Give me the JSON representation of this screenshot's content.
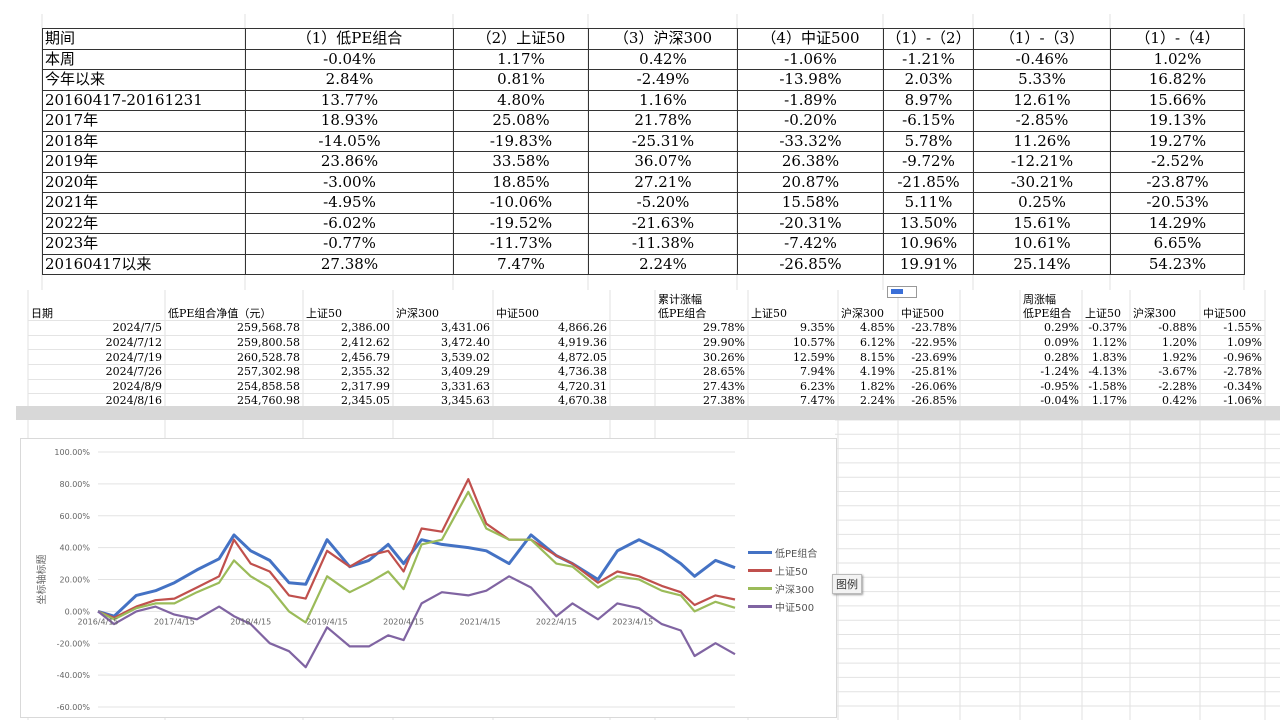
{
  "summary_table": {
    "headers": [
      "期间",
      "（1）低PE组合",
      "（2）上证50",
      "（3）沪深300",
      "（4）中证500",
      "（1）-（2）",
      "（1）-（3）",
      "（1）-（4）"
    ],
    "rows": [
      [
        "本周",
        "-0.04%",
        "1.17%",
        "0.42%",
        "-1.06%",
        "-1.21%",
        "-0.46%",
        "1.02%"
      ],
      [
        "今年以来",
        "2.84%",
        "0.81%",
        "-2.49%",
        "-13.98%",
        "2.03%",
        "5.33%",
        "16.82%"
      ],
      [
        "20160417-20161231",
        "13.77%",
        "4.80%",
        "1.16%",
        "-1.89%",
        "8.97%",
        "12.61%",
        "15.66%"
      ],
      [
        "2017年",
        "18.93%",
        "25.08%",
        "21.78%",
        "-0.20%",
        "-6.15%",
        "-2.85%",
        "19.13%"
      ],
      [
        "2018年",
        "-14.05%",
        "-19.83%",
        "-25.31%",
        "-33.32%",
        "5.78%",
        "11.26%",
        "19.27%"
      ],
      [
        "2019年",
        "23.86%",
        "33.58%",
        "36.07%",
        "26.38%",
        "-9.72%",
        "-12.21%",
        "-2.52%"
      ],
      [
        "2020年",
        "-3.00%",
        "18.85%",
        "27.21%",
        "20.87%",
        "-21.85%",
        "-30.21%",
        "-23.87%"
      ],
      [
        "2021年",
        "-4.95%",
        "-10.06%",
        "-5.20%",
        "15.58%",
        "5.11%",
        "0.25%",
        "-20.53%"
      ],
      [
        "2022年",
        "-6.02%",
        "-19.52%",
        "-21.63%",
        "-20.31%",
        "13.50%",
        "15.61%",
        "14.29%"
      ],
      [
        "2023年",
        "-0.77%",
        "-11.73%",
        "-11.38%",
        "-7.42%",
        "10.96%",
        "10.61%",
        "6.65%"
      ],
      [
        "20160417以来",
        "27.38%",
        "7.47%",
        "2.24%",
        "-26.85%",
        "19.91%",
        "25.14%",
        "54.23%"
      ]
    ]
  },
  "weekly_table": {
    "group_cumulative": "累计涨幅",
    "group_weekly": "周涨幅",
    "headers": [
      "日期",
      "低PE组合净值（元）",
      "上证50",
      "沪深300",
      "中证500",
      "低PE组合",
      "上证50",
      "沪深300",
      "中证500",
      "低PE组合",
      "上证50",
      "沪深300",
      "中证500"
    ],
    "rows": [
      [
        "2024/7/5",
        "259,568.78",
        "2,386.00",
        "3,431.06",
        "4,866.26",
        "29.78%",
        "9.35%",
        "4.85%",
        "-23.78%",
        "0.29%",
        "-0.37%",
        "-0.88%",
        "-1.55%"
      ],
      [
        "2024/7/12",
        "259,800.58",
        "2,412.62",
        "3,472.40",
        "4,919.36",
        "29.90%",
        "10.57%",
        "6.12%",
        "-22.95%",
        "0.09%",
        "1.12%",
        "1.20%",
        "1.09%"
      ],
      [
        "2024/7/19",
        "260,528.78",
        "2,456.79",
        "3,539.02",
        "4,872.05",
        "30.26%",
        "12.59%",
        "8.15%",
        "-23.69%",
        "0.28%",
        "1.83%",
        "1.92%",
        "-0.96%"
      ],
      [
        "2024/7/26",
        "257,302.98",
        "2,355.32",
        "3,409.29",
        "4,736.38",
        "28.65%",
        "7.94%",
        "4.19%",
        "-25.81%",
        "-1.24%",
        "-4.13%",
        "-3.67%",
        "-2.78%"
      ],
      [
        "2024/8/9",
        "254,858.58",
        "2,317.99",
        "3,331.63",
        "4,720.31",
        "27.43%",
        "6.23%",
        "1.82%",
        "-26.06%",
        "-0.95%",
        "-1.58%",
        "-2.28%",
        "-0.34%"
      ],
      [
        "2024/8/16",
        "254,760.98",
        "2,345.05",
        "3,345.63",
        "4,670.38",
        "27.38%",
        "7.47%",
        "2.24%",
        "-26.85%",
        "-0.04%",
        "1.17%",
        "0.42%",
        "-1.06%"
      ]
    ]
  },
  "chart_data": {
    "type": "line",
    "ylabel": "坐标轴标题",
    "ylim": [
      -0.6,
      1.0
    ],
    "yticks": [
      "100.00%",
      "80.00%",
      "60.00%",
      "40.00%",
      "20.00%",
      "0.00%",
      "-20.00%",
      "-40.00%",
      "-60.00%"
    ],
    "xticks": [
      "2016/4/15",
      "2017/4/15",
      "2018/4/15",
      "2019/4/15",
      "2020/4/15",
      "2021/4/15",
      "2022/4/15",
      "2023/4/15"
    ],
    "xrange": [
      "2016/4/15",
      "2024/8/16"
    ],
    "grid": true,
    "legend": "right",
    "legend_tooltip": "图例",
    "x": [
      "2016/4/15",
      "2016/7/1",
      "2016/10/15",
      "2017/1/15",
      "2017/4/15",
      "2017/8/1",
      "2017/11/15",
      "2018/1/25",
      "2018/4/15",
      "2018/7/15",
      "2018/10/15",
      "2019/1/3",
      "2019/4/15",
      "2019/8/1",
      "2019/11/1",
      "2020/2/1",
      "2020/4/15",
      "2020/7/10",
      "2020/10/15",
      "2021/2/18",
      "2021/5/15",
      "2021/9/1",
      "2021/12/15",
      "2022/4/15",
      "2022/7/1",
      "2022/10/31",
      "2023/2/1",
      "2023/5/15",
      "2023/9/1",
      "2023/12/1",
      "2024/2/5",
      "2024/5/15",
      "2024/8/16"
    ],
    "series": [
      {
        "name": "低PE组合",
        "color": "#4472c4",
        "values": [
          0,
          -0.03,
          0.1,
          0.13,
          0.18,
          0.26,
          0.33,
          0.48,
          0.38,
          0.32,
          0.18,
          0.17,
          0.45,
          0.28,
          0.32,
          0.42,
          0.3,
          0.45,
          0.42,
          0.4,
          0.38,
          0.3,
          0.48,
          0.35,
          0.3,
          0.2,
          0.38,
          0.45,
          0.38,
          0.3,
          0.22,
          0.32,
          0.2738
        ]
      },
      {
        "name": "上证50",
        "color": "#c0504d",
        "values": [
          0,
          -0.04,
          0.03,
          0.07,
          0.08,
          0.15,
          0.22,
          0.45,
          0.3,
          0.25,
          0.1,
          0.08,
          0.38,
          0.28,
          0.35,
          0.38,
          0.25,
          0.52,
          0.5,
          0.83,
          0.55,
          0.45,
          0.45,
          0.35,
          0.3,
          0.18,
          0.25,
          0.22,
          0.16,
          0.12,
          0.04,
          0.1,
          0.0747
        ]
      },
      {
        "name": "沪深300",
        "color": "#9bbb59",
        "values": [
          0,
          -0.05,
          0.02,
          0.05,
          0.05,
          0.12,
          0.18,
          0.32,
          0.22,
          0.15,
          0.0,
          -0.07,
          0.22,
          0.12,
          0.18,
          0.25,
          0.14,
          0.42,
          0.45,
          0.75,
          0.52,
          0.45,
          0.45,
          0.3,
          0.28,
          0.15,
          0.22,
          0.2,
          0.13,
          0.1,
          0.0,
          0.06,
          0.0224
        ]
      },
      {
        "name": "中证500",
        "color": "#8064a2",
        "values": [
          0,
          -0.08,
          0.0,
          0.03,
          -0.02,
          -0.05,
          0.03,
          -0.03,
          -0.08,
          -0.2,
          -0.25,
          -0.35,
          -0.1,
          -0.22,
          -0.22,
          -0.15,
          -0.18,
          0.05,
          0.12,
          0.1,
          0.13,
          0.22,
          0.15,
          -0.03,
          0.05,
          -0.05,
          0.05,
          0.02,
          -0.08,
          -0.12,
          -0.28,
          -0.2,
          -0.2685
        ]
      }
    ]
  }
}
